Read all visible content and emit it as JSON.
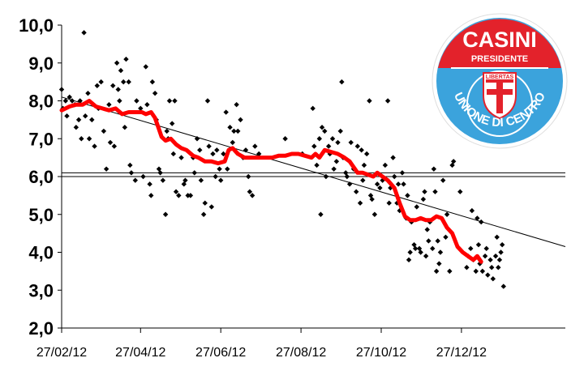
{
  "chart_data": {
    "type": "scatter",
    "title": "",
    "xlabel": "",
    "ylabel": "",
    "ylim": [
      2.0,
      10.0
    ],
    "xlim": [
      "27/02/12",
      "16/03/13"
    ],
    "y_ticks": [
      "2,0",
      "3,0",
      "4,0",
      "5,0",
      "6,0",
      "7,0",
      "8,0",
      "9,0",
      "10,0"
    ],
    "x_ticks": [
      "27/02/12",
      "27/04/12",
      "27/06/12",
      "27/08/12",
      "27/10/12",
      "27/12/12"
    ],
    "grid": false,
    "reference_lines": [
      6.1,
      6.0
    ],
    "trend_line": {
      "start": [
        "27/02/12",
        8.1
      ],
      "end": [
        "16/03/13",
        4.15
      ]
    },
    "colors": {
      "points": "#000000",
      "moving_average": "#ff0000",
      "trend": "#000000"
    },
    "series": [
      {
        "kind": "points",
        "points": [
          [
            "27/02/12",
            8.3
          ],
          [
            "28/02/12",
            7.8
          ],
          [
            "01/03/12",
            8.0
          ],
          [
            "02/03/12",
            7.6
          ],
          [
            "04/03/12",
            8.1
          ],
          [
            "06/03/12",
            8.0
          ],
          [
            "08/03/12",
            7.9
          ],
          [
            "09/03/12",
            7.3
          ],
          [
            "11/03/12",
            7.5
          ],
          [
            "12/03/12",
            8.0
          ],
          [
            "13/03/12",
            7.0
          ],
          [
            "15/03/12",
            9.8
          ],
          [
            "16/03/12",
            7.6
          ],
          [
            "18/03/12",
            8.2
          ],
          [
            "19/03/12",
            7.0
          ],
          [
            "21/03/12",
            7.5
          ],
          [
            "23/03/12",
            6.8
          ],
          [
            "25/03/12",
            8.4
          ],
          [
            "26/03/12",
            7.8
          ],
          [
            "28/03/12",
            8.5
          ],
          [
            "30/03/12",
            7.2
          ],
          [
            "01/04/12",
            6.2
          ],
          [
            "03/04/12",
            7.9
          ],
          [
            "04/04/12",
            6.9
          ],
          [
            "06/04/12",
            8.4
          ],
          [
            "07/04/12",
            6.8
          ],
          [
            "09/04/12",
            9.0
          ],
          [
            "10/04/12",
            8.3
          ],
          [
            "11/04/12",
            8.0
          ],
          [
            "12/04/12",
            8.8
          ],
          [
            "14/04/12",
            8.5
          ],
          [
            "15/04/12",
            7.3
          ],
          [
            "16/04/12",
            9.1
          ],
          [
            "18/04/12",
            8.5
          ],
          [
            "19/04/12",
            6.3
          ],
          [
            "20/04/12",
            6.1
          ],
          [
            "23/04/12",
            5.9
          ],
          [
            "24/04/12",
            8.0
          ],
          [
            "27/04/12",
            7.8
          ],
          [
            "29/04/12",
            6.0
          ],
          [
            "01/05/12",
            8.9
          ],
          [
            "02/05/12",
            7.9
          ],
          [
            "04/05/12",
            5.8
          ],
          [
            "05/05/12",
            5.5
          ],
          [
            "06/05/12",
            8.5
          ],
          [
            "08/05/12",
            8.2
          ],
          [
            "09/05/12",
            7.5
          ],
          [
            "11/05/12",
            6.2
          ],
          [
            "12/05/12",
            6.1
          ],
          [
            "14/05/12",
            5.9
          ],
          [
            "16/05/12",
            5.0
          ],
          [
            "17/05/12",
            7.2
          ],
          [
            "18/05/12",
            7.0
          ],
          [
            "19/05/12",
            8.0
          ],
          [
            "21/05/12",
            7.4
          ],
          [
            "22/05/12",
            6.6
          ],
          [
            "23/05/12",
            8.0
          ],
          [
            "24/05/12",
            5.6
          ],
          [
            "26/05/12",
            5.5
          ],
          [
            "28/05/12",
            6.5
          ],
          [
            "30/05/12",
            5.8
          ],
          [
            "31/05/12",
            5.9
          ],
          [
            "02/06/12",
            5.5
          ],
          [
            "04/06/12",
            5.5
          ],
          [
            "06/06/12",
            6.5
          ],
          [
            "07/06/12",
            6.1
          ],
          [
            "09/06/12",
            7.0
          ],
          [
            "11/06/12",
            6.7
          ],
          [
            "12/06/12",
            5.9
          ],
          [
            "14/06/12",
            5.0
          ],
          [
            "15/06/12",
            5.3
          ],
          [
            "17/06/12",
            8.0
          ],
          [
            "18/06/12",
            6.8
          ],
          [
            "20/06/12",
            5.2
          ],
          [
            "21/06/12",
            6.6
          ],
          [
            "23/06/12",
            6.0
          ],
          [
            "24/06/12",
            6.7
          ],
          [
            "26/06/12",
            6.2
          ],
          [
            "27/06/12",
            5.9
          ],
          [
            "29/06/12",
            6.6
          ],
          [
            "01/07/12",
            7.7
          ],
          [
            "02/07/12",
            6.2
          ],
          [
            "04/07/12",
            7.3
          ],
          [
            "06/07/12",
            6.9
          ],
          [
            "07/07/12",
            7.2
          ],
          [
            "09/07/12",
            7.9
          ],
          [
            "10/07/12",
            7.2
          ],
          [
            "12/07/12",
            7.5
          ],
          [
            "14/07/12",
            6.5
          ],
          [
            "16/07/12",
            6.7
          ],
          [
            "18/07/12",
            6.0
          ],
          [
            "19/07/12",
            5.6
          ],
          [
            "21/07/12",
            5.5
          ],
          [
            "23/07/12",
            6.8
          ],
          [
            "26/07/12",
            6.6
          ],
          [
            "15/08/12",
            7.0
          ],
          [
            "28/08/12",
            6.6
          ],
          [
            "05/09/12",
            7.8
          ],
          [
            "06/09/12",
            6.8
          ],
          [
            "08/09/12",
            6.3
          ],
          [
            "10/09/12",
            7.0
          ],
          [
            "11/09/12",
            5.0
          ],
          [
            "12/09/12",
            7.3
          ],
          [
            "14/09/12",
            7.2
          ],
          [
            "15/09/12",
            6.0
          ],
          [
            "17/09/12",
            6.8
          ],
          [
            "18/09/12",
            6.6
          ],
          [
            "20/09/12",
            7.0
          ],
          [
            "21/09/12",
            6.2
          ],
          [
            "23/09/12",
            6.4
          ],
          [
            "24/09/12",
            6.9
          ],
          [
            "26/09/12",
            7.2
          ],
          [
            "27/09/12",
            8.5
          ],
          [
            "28/09/12",
            6.5
          ],
          [
            "30/09/12",
            6.1
          ],
          [
            "01/10/12",
            6.0
          ],
          [
            "03/10/12",
            5.8
          ],
          [
            "04/10/12",
            6.9
          ],
          [
            "06/10/12",
            6.2
          ],
          [
            "08/10/12",
            5.6
          ],
          [
            "09/10/12",
            6.8
          ],
          [
            "11/10/12",
            5.3
          ],
          [
            "12/10/12",
            6.7
          ],
          [
            "13/10/12",
            5.9
          ],
          [
            "14/10/12",
            6.3
          ],
          [
            "16/10/12",
            6.6
          ],
          [
            "18/10/12",
            8.0
          ],
          [
            "19/10/12",
            5.5
          ],
          [
            "20/10/12",
            5.4
          ],
          [
            "22/10/12",
            5.0
          ],
          [
            "24/10/12",
            5.8
          ],
          [
            "26/10/12",
            5.7
          ],
          [
            "28/10/12",
            5.9
          ],
          [
            "30/10/12",
            6.3
          ],
          [
            "01/11/12",
            8.0
          ],
          [
            "02/11/12",
            5.3
          ],
          [
            "03/11/12",
            5.7
          ],
          [
            "05/11/12",
            6.5
          ],
          [
            "06/11/12",
            6.0
          ],
          [
            "08/11/12",
            5.3
          ],
          [
            "09/11/12",
            5.8
          ],
          [
            "10/11/12",
            5.1
          ],
          [
            "12/11/12",
            6.1
          ],
          [
            "13/11/12",
            5.8
          ],
          [
            "15/11/12",
            4.9
          ],
          [
            "16/11/12",
            5.5
          ],
          [
            "17/11/12",
            3.8
          ],
          [
            "18/11/12",
            4.0
          ],
          [
            "19/11/12",
            4.8
          ],
          [
            "21/11/12",
            4.2
          ],
          [
            "22/11/12",
            4.1
          ],
          [
            "23/11/12",
            5.2
          ],
          [
            "25/11/12",
            4.1
          ],
          [
            "26/11/12",
            4.0
          ],
          [
            "28/11/12",
            5.4
          ],
          [
            "29/11/12",
            5.6
          ],
          [
            "30/11/12",
            3.9
          ],
          [
            "01/12/12",
            4.6
          ],
          [
            "02/12/12",
            4.3
          ],
          [
            "03/12/12",
            4.8
          ],
          [
            "05/12/12",
            4.1
          ],
          [
            "06/12/12",
            6.2
          ],
          [
            "07/12/12",
            5.6
          ],
          [
            "08/12/12",
            3.5
          ],
          [
            "09/12/12",
            4.3
          ],
          [
            "10/12/12",
            3.7
          ],
          [
            "11/12/12",
            4.0
          ],
          [
            "13/12/12",
            5.9
          ],
          [
            "15/12/12",
            4.4
          ],
          [
            "16/12/12",
            5.0
          ],
          [
            "18/12/12",
            3.5
          ],
          [
            "20/12/12",
            6.3
          ],
          [
            "21/12/12",
            6.4
          ],
          [
            "26/12/12",
            5.6
          ],
          [
            "31/12/12",
            3.6
          ],
          [
            "01/01/13",
            3.9
          ],
          [
            "03/01/13",
            4.1
          ],
          [
            "04/01/13",
            5.1
          ],
          [
            "05/01/13",
            3.8
          ],
          [
            "07/01/13",
            3.5
          ],
          [
            "08/01/13",
            4.9
          ],
          [
            "09/01/13",
            4.2
          ],
          [
            "10/01/13",
            3.7
          ],
          [
            "11/01/13",
            4.8
          ],
          [
            "12/01/13",
            3.5
          ],
          [
            "14/01/13",
            3.9
          ],
          [
            "15/01/13",
            4.1
          ],
          [
            "16/01/13",
            3.4
          ],
          [
            "18/01/13",
            3.8
          ],
          [
            "19/01/13",
            3.6
          ],
          [
            "20/01/13",
            3.3
          ],
          [
            "22/01/13",
            3.9
          ],
          [
            "23/01/13",
            4.4
          ],
          [
            "24/01/13",
            3.6
          ],
          [
            "25/01/13",
            3.8
          ],
          [
            "26/01/13",
            4.0
          ],
          [
            "27/01/13",
            4.2
          ],
          [
            "28/01/13",
            3.1
          ]
        ]
      },
      {
        "kind": "moving_average",
        "points": [
          [
            "27/02/12",
            7.75
          ],
          [
            "04/03/12",
            7.85
          ],
          [
            "09/03/12",
            7.9
          ],
          [
            "14/03/12",
            7.9
          ],
          [
            "19/03/12",
            8.0
          ],
          [
            "24/03/12",
            7.85
          ],
          [
            "29/03/12",
            7.8
          ],
          [
            "03/04/12",
            7.75
          ],
          [
            "08/04/12",
            7.8
          ],
          [
            "13/04/12",
            7.65
          ],
          [
            "18/04/12",
            7.7
          ],
          [
            "23/04/12",
            7.7
          ],
          [
            "28/04/12",
            7.7
          ],
          [
            "01/05/12",
            7.65
          ],
          [
            "05/05/12",
            7.7
          ],
          [
            "08/05/12",
            7.55
          ],
          [
            "11/05/12",
            7.25
          ],
          [
            "13/05/12",
            7.05
          ],
          [
            "16/05/12",
            6.95
          ],
          [
            "20/05/12",
            7.0
          ],
          [
            "24/05/12",
            6.85
          ],
          [
            "28/05/12",
            6.75
          ],
          [
            "01/06/12",
            6.7
          ],
          [
            "06/06/12",
            6.55
          ],
          [
            "10/06/12",
            6.5
          ],
          [
            "15/06/12",
            6.4
          ],
          [
            "20/06/12",
            6.4
          ],
          [
            "25/06/12",
            6.35
          ],
          [
            "30/06/12",
            6.4
          ],
          [
            "03/07/12",
            6.7
          ],
          [
            "06/07/12",
            6.75
          ],
          [
            "10/07/12",
            6.6
          ],
          [
            "15/07/12",
            6.5
          ],
          [
            "20/07/12",
            6.5
          ],
          [
            "25/07/12",
            6.5
          ],
          [
            "30/07/12",
            6.5
          ],
          [
            "05/08/12",
            6.5
          ],
          [
            "10/08/12",
            6.55
          ],
          [
            "15/08/12",
            6.55
          ],
          [
            "20/08/12",
            6.6
          ],
          [
            "25/08/12",
            6.6
          ],
          [
            "30/08/12",
            6.55
          ],
          [
            "04/09/12",
            6.5
          ],
          [
            "07/09/12",
            6.6
          ],
          [
            "10/09/12",
            6.5
          ],
          [
            "14/09/12",
            6.7
          ],
          [
            "19/09/12",
            6.65
          ],
          [
            "24/09/12",
            6.6
          ],
          [
            "29/09/12",
            6.5
          ],
          [
            "03/10/12",
            6.4
          ],
          [
            "06/10/12",
            6.25
          ],
          [
            "09/10/12",
            6.1
          ],
          [
            "13/10/12",
            6.1
          ],
          [
            "17/10/12",
            6.05
          ],
          [
            "21/10/12",
            6.0
          ],
          [
            "24/10/12",
            6.1
          ],
          [
            "28/10/12",
            6.0
          ],
          [
            "01/11/12",
            5.9
          ],
          [
            "06/11/12",
            5.7
          ],
          [
            "10/11/12",
            5.3
          ],
          [
            "14/11/12",
            4.95
          ],
          [
            "18/11/12",
            4.85
          ],
          [
            "22/11/12",
            4.85
          ],
          [
            "26/11/12",
            4.9
          ],
          [
            "30/11/12",
            4.85
          ],
          [
            "04/12/12",
            4.85
          ],
          [
            "08/12/12",
            4.95
          ],
          [
            "12/12/12",
            4.9
          ],
          [
            "16/12/12",
            4.65
          ],
          [
            "20/12/12",
            4.5
          ],
          [
            "24/12/12",
            4.15
          ],
          [
            "28/12/12",
            4.0
          ],
          [
            "01/01/13",
            3.9
          ],
          [
            "05/01/13",
            3.8
          ],
          [
            "08/01/13",
            3.9
          ],
          [
            "11/01/13",
            3.75
          ]
        ]
      }
    ]
  },
  "logo": {
    "top_text": "CASINI",
    "sub_text": "PRESIDENTE",
    "shield_text": "LIBERTAS",
    "ring_text": "UNIONE DI CENTRO",
    "colors": {
      "red": "#e3222b",
      "blue": "#3ba3dc",
      "white": "#ffffff"
    }
  }
}
